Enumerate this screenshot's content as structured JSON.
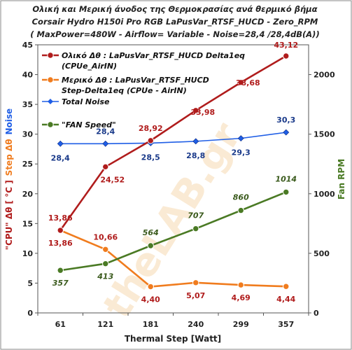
{
  "chart_data": {
    "type": "line",
    "title": [
      "Ολική και Μερική άνοδος της Θερμοκρασίας ανά θερμικό βήμα",
      "Corsair Hydro H150i Pro RGB   LaPusVar_RTSF_HUCD - Zero_RPM",
      "( MaxPower=480W  - Airflow= Variable  - Noise=28,4 /28,4dB(A))"
    ],
    "xlabel": "Thermal Step [Watt]",
    "categories": [
      "61",
      "121",
      "181",
      "240",
      "299",
      "357"
    ],
    "ylabel_left": {
      "part1": "\"CPU\" Δθ  [ °C ]",
      "part2": "Step Δθ",
      "part3": "Noise"
    },
    "ylabel_right": "Fan RPM",
    "ylim_left": [
      0,
      45
    ],
    "yticks_left": [
      "0",
      "5",
      "10",
      "15",
      "20",
      "25",
      "30",
      "35",
      "40",
      "45"
    ],
    "ylim_right": [
      0,
      2250
    ],
    "yticks_right": [
      "0",
      "500",
      "1000",
      "1500",
      "2000"
    ],
    "grid": false,
    "legend_position": "top-left",
    "watermark": "theLAB.gr",
    "series": [
      {
        "name": "Ολικό Δθ :  LaPusVar_RTSF_HUCD  Delta1eq (CPUe_AirIN)",
        "legend_lines": [
          "Ολικό Δθ :  LaPusVar_RTSF_HUCD  Delta1eq",
          "(CPUe_AirIN)"
        ],
        "axis": "left",
        "color": "#b01c1c",
        "marker": "circle",
        "values": [
          13.86,
          24.52,
          28.92,
          33.98,
          38.68,
          43.12
        ],
        "labels": [
          "13,86",
          "24,52",
          "28,92",
          "33,98",
          "38,68",
          "43,12"
        ]
      },
      {
        "name": "Μερικό Δθ :  LaPusVar_RTSF_HUCD Step-Delta1eq (CPUe - AirIN)",
        "legend_lines": [
          "Μερικό Δθ :  LaPusVar_RTSF_HUCD",
          "Step-Delta1eq (CPUe - AirIN)"
        ],
        "axis": "left",
        "color": "#f07c1e",
        "marker": "circle",
        "values": [
          13.86,
          10.66,
          4.4,
          5.07,
          4.69,
          4.44
        ],
        "labels": [
          "13,86",
          "10,66",
          "4,40",
          "5,07",
          "4,69",
          "4,44"
        ]
      },
      {
        "name": "Total Noise",
        "legend_lines": [
          "Total Noise"
        ],
        "axis": "left",
        "color": "#1f5ee6",
        "marker": "diamond",
        "values": [
          28.4,
          28.4,
          28.5,
          28.8,
          29.3,
          30.3
        ],
        "labels": [
          "28,4",
          "28,4",
          "28,5",
          "28,8",
          "29,3",
          "30,3"
        ]
      },
      {
        "name": "\"FAN Speed\"",
        "legend_lines": [
          "\"FAN Speed\""
        ],
        "axis": "right",
        "color": "#4a7a24",
        "marker": "circle",
        "values": [
          357,
          413,
          564,
          707,
          860,
          1014
        ],
        "labels": [
          "357",
          "413",
          "564",
          "707",
          "860",
          "1014"
        ]
      }
    ]
  }
}
